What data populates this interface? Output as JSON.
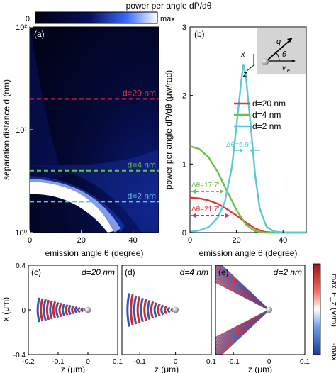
{
  "colorbar_top": {
    "title": "power per angle dP/dθ",
    "min_label": "0",
    "max_label": "max"
  },
  "panel_a": {
    "label": "(a)",
    "xlabel": "emission angle θ (degree)",
    "ylabel": "separation distance d (nm)",
    "xticks": [
      "0",
      "20",
      "40"
    ],
    "yticks": [
      "10²",
      "10¹",
      "10⁰"
    ],
    "lines": [
      {
        "label": "d=20 nm",
        "d": 20,
        "color": "#e8333a"
      },
      {
        "label": "d=4 nm",
        "d": 4,
        "color": "#6cc04a"
      },
      {
        "label": "d=2 nm",
        "d": 2,
        "color": "#5bc8d8"
      }
    ]
  },
  "panel_b": {
    "label": "(b)",
    "xlabel": "emission angle θ (degree)",
    "ylabel": "power per angle dP/dθ (μw/rad)",
    "xticks": [
      "0",
      "20",
      "40"
    ],
    "yticks": [
      "0",
      "1",
      "2",
      "3"
    ],
    "legend": [
      "d=20 nm",
      "d=4 nm",
      "d=2 nm"
    ],
    "annotations": [
      {
        "text": "Δθ=5.9°",
        "color": "#5bc8d8"
      },
      {
        "text": "Δθ=17.7°",
        "color": "#6cc04a"
      },
      {
        "text": "Δθ=21.7°",
        "color": "#e8333a"
      }
    ],
    "inset": {
      "q": "q",
      "theta": "θ",
      "v": "v",
      "sub": "e",
      "x": "x",
      "z": "z"
    }
  },
  "bottom_panels": [
    {
      "label": "(c)",
      "title": "d=20 nm",
      "xticks": [
        "-0.2",
        "-0.1",
        "0",
        "0.1"
      ]
    },
    {
      "label": "(d)",
      "title": "d=4 nm",
      "xticks": [
        "-0.1",
        "0",
        "0.1"
      ]
    },
    {
      "label": "(e)",
      "title": "d=2 nm",
      "xticks": [
        "-0.1",
        "0",
        "0.1"
      ]
    }
  ],
  "bottom_axes": {
    "xlabel": "z (μm)",
    "ylabel": "x (μm)",
    "yticks": [
      "0.4",
      "0",
      "-0.4"
    ]
  },
  "colorbar_right": {
    "title": "E_z (V/m)",
    "max_label": "max",
    "min_label": "-max"
  },
  "chart_data": [
    {
      "type": "heatmap",
      "panel": "(a)",
      "title": "",
      "xlabel": "emission angle θ (degree)",
      "ylabel": "separation distance d (nm)",
      "xlim": [
        0,
        50
      ],
      "ylim": [
        1,
        100
      ],
      "yscale": "log",
      "description_lines": [
        20,
        4,
        2
      ]
    },
    {
      "type": "line",
      "panel": "(b)",
      "xlabel": "emission angle θ (degree)",
      "ylabel": "power per angle dP/dθ (μw/rad)",
      "xlim": [
        0,
        50
      ],
      "ylim": [
        0,
        3
      ],
      "series": [
        {
          "name": "d=20 nm",
          "color": "#e8333a",
          "x": [
            0,
            4,
            8,
            12,
            16,
            20,
            24,
            28,
            32,
            36,
            40,
            44,
            48,
            50
          ],
          "y": [
            0.51,
            0.5,
            0.47,
            0.42,
            0.34,
            0.25,
            0.15,
            0.06,
            0.01,
            0,
            0,
            0,
            0,
            0
          ]
        },
        {
          "name": "d=4 nm",
          "color": "#6cc04a",
          "x": [
            0,
            4,
            8,
            12,
            16,
            20,
            24,
            28,
            32,
            36,
            40,
            44,
            48,
            50
          ],
          "y": [
            1.26,
            1.22,
            1.1,
            0.88,
            0.6,
            0.33,
            0.12,
            0.02,
            0,
            0,
            0,
            0,
            0,
            0
          ]
        },
        {
          "name": "d=2 nm",
          "color": "#5bc8d8",
          "x": [
            0,
            4,
            8,
            12,
            15,
            18,
            20,
            22,
            23,
            24,
            26,
            28,
            30,
            33,
            36,
            40,
            50
          ],
          "y": [
            0.01,
            0.03,
            0.08,
            0.22,
            0.45,
            0.95,
            1.55,
            2.2,
            2.45,
            2.3,
            1.6,
            0.85,
            0.35,
            0.08,
            0.02,
            0,
            0
          ]
        }
      ]
    }
  ]
}
